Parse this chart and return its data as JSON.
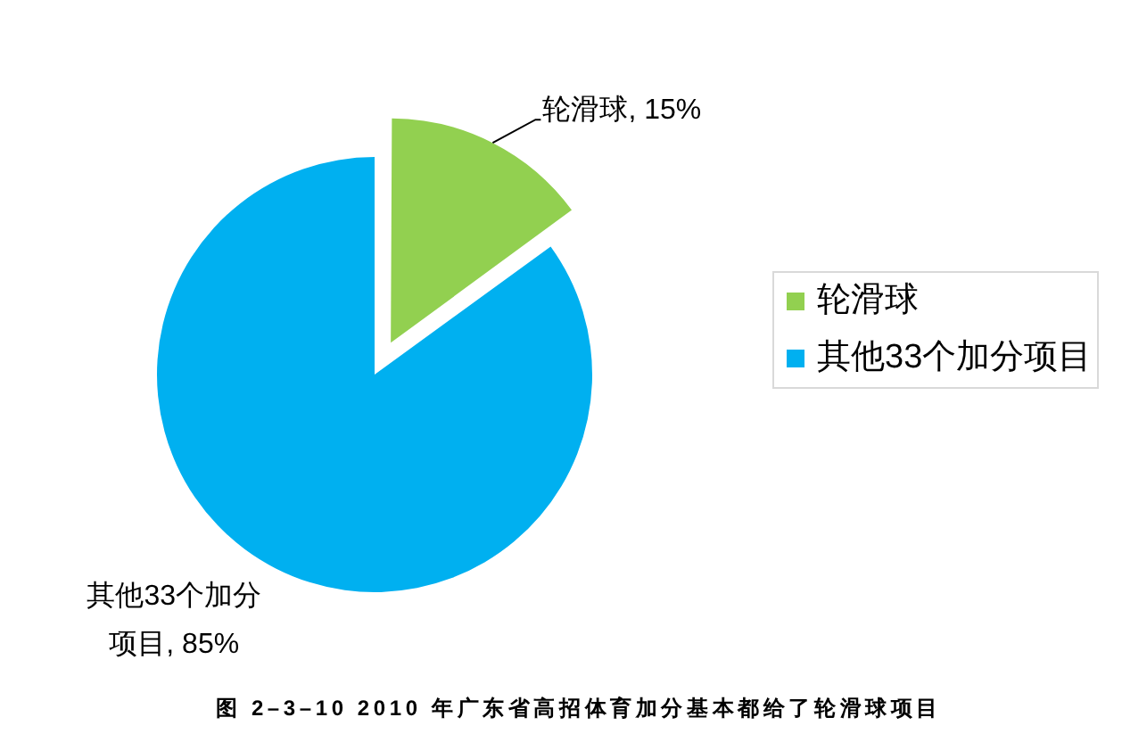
{
  "chart_data": {
    "type": "pie",
    "title": "图 2–3–10 2010 年广东省高招体育加分基本都给了轮滑球项目",
    "categories": [
      "轮滑球",
      "其他33个加分项目"
    ],
    "values": [
      15,
      85
    ],
    "colors": [
      "#92d050",
      "#00b0f0"
    ],
    "value_labels": [
      "轮滑球, 15%",
      "其他33个加分项目, 85%"
    ],
    "legend": "right"
  }
}
